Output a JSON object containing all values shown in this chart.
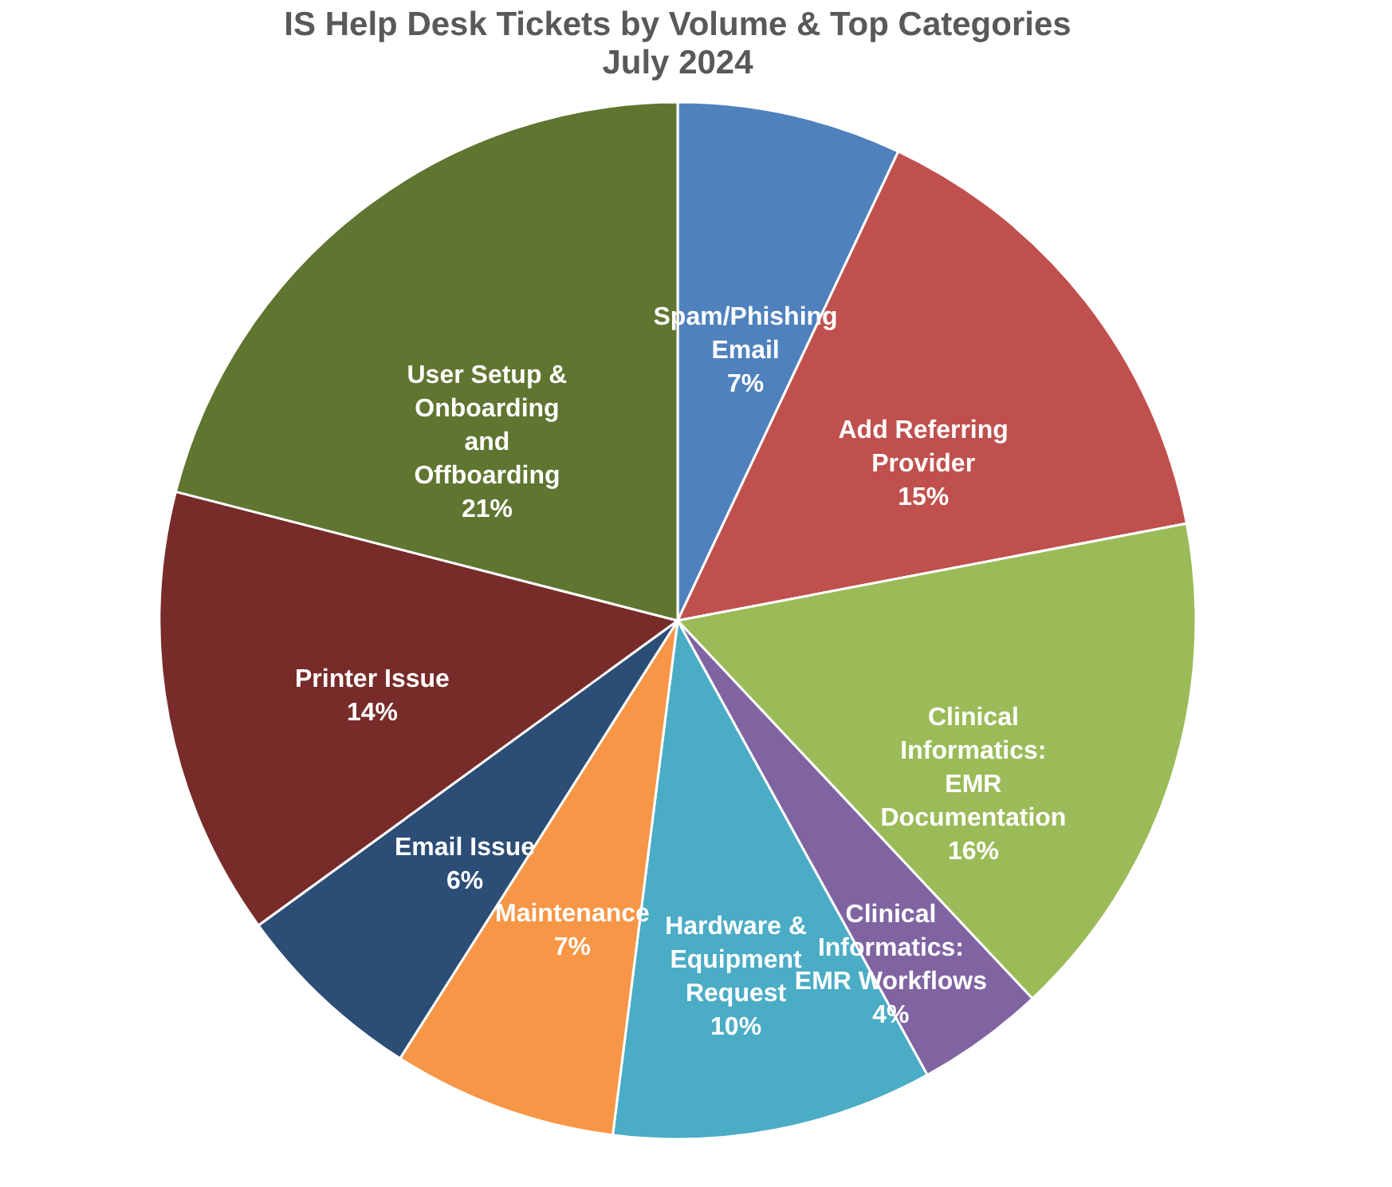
{
  "chart_data": {
    "type": "pie",
    "title": "IS Help Desk Tickets by Volume & Top Categories",
    "subtitle": "July 2024",
    "categories": [
      "Spam/Phishing Email",
      "Add Referring Provider",
      "Clinical Informatics: EMR Documentation",
      "Clinical Informatics: EMR Workflows",
      "Hardware & Equipment Request",
      "Maintenance",
      "Email Issue",
      "Printer Issue",
      "User Setup & Onboarding and Offboarding"
    ],
    "values": [
      7,
      15,
      16,
      4,
      10,
      7,
      6,
      14,
      21
    ],
    "value_labels": [
      "7%",
      "15%",
      "16%",
      "4%",
      "10%",
      "7%",
      "6%",
      "14%",
      "21%"
    ],
    "colors": [
      "#4f81bd",
      "#c0504d",
      "#9bbb59",
      "#8064a2",
      "#4bacc6",
      "#f79646",
      "#2c4d75",
      "#772c2a",
      "#5f7530"
    ],
    "legend": false
  }
}
